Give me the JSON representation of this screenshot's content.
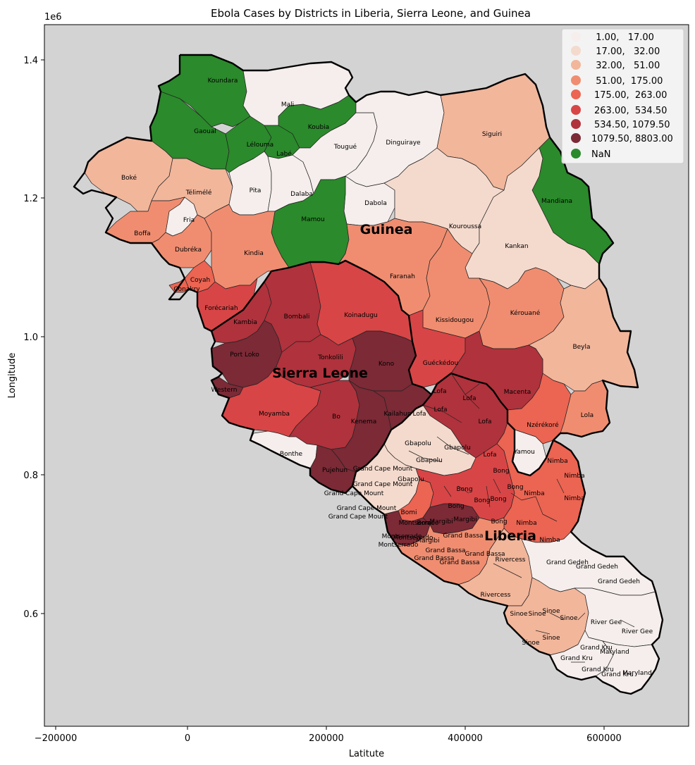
{
  "map": {
    "title": "Ebola Cases by Districts in Liberia, Sierra Leone, and Guinea",
    "xlabel": "Latitute",
    "ylabel": "Longitude",
    "y_offset_label": "1e6",
    "background_color": "#d3d3d3",
    "x_ticks": [
      "−200000",
      "0",
      "200000",
      "400000",
      "600000"
    ],
    "y_ticks": [
      "0.6",
      "0.8",
      "1.0",
      "1.2",
      "1.4"
    ],
    "countries": [
      {
        "name": "Guinea"
      },
      {
        "name": "Sierra Leone"
      },
      {
        "name": "Liberia"
      }
    ],
    "legend": {
      "placement": "top-right",
      "items": [
        {
          "label": "  1.00,   17.00",
          "color": "#f5eeec"
        },
        {
          "label": "  17.00,   32.00",
          "color": "#f4dacd"
        },
        {
          "label": "  32.00,   51.00",
          "color": "#f2b69b"
        },
        {
          "label": "  51.00,  175.00",
          "color": "#f08d70"
        },
        {
          "label": "175.00,  263.00",
          "color": "#ec6452"
        },
        {
          "label": "263.00,  534.50",
          "color": "#d84546"
        },
        {
          "label": "534.50, 1079.50",
          "color": "#b0323c"
        },
        {
          "label": "1079.50, 8803.00",
          "color": "#7b2a36"
        },
        {
          "label": "NaN",
          "color": "#2b8a2b"
        }
      ]
    },
    "district_labels": [
      "Koundara",
      "Mali",
      "Koubia",
      "Gaoual",
      "Lélouma",
      "Labé",
      "Tougué",
      "Dinguiraye",
      "Siguiri",
      "Boké",
      "Télimélé",
      "Pita",
      "Dalaba",
      "Dabola",
      "Mandiana",
      "Fria",
      "Mamou",
      "Kouroussa",
      "Boffa",
      "Dubréka",
      "Kindia",
      "Kankan",
      "Coyah",
      "Conakry",
      "Faranah",
      "Forécariah",
      "Kambia",
      "Bombali",
      "Koinadugu",
      "Kissidougou",
      "Kérouané",
      "Port Loko",
      "Tonkolili",
      "Kono",
      "Guéckédou",
      "Beyla",
      "Western",
      "Moyamba",
      "Bo",
      "Kenema",
      "Kailahun",
      "Macenta",
      "Nzérékoré",
      "Lola",
      "Bonthe",
      "Pujehun",
      "Yamou",
      "Lofa",
      "Lofa",
      "Lofa",
      "Lofa",
      "Lofa",
      "Lofa",
      "Gbapolu",
      "Gbapolu",
      "Gbapolu",
      "Gbapolu",
      "Grand Cape Mount",
      "Grand Cape Mount",
      "Grand Cape Mount",
      "Grand Cape Mount",
      "Grand Cape Mount",
      "Bong",
      "Bong",
      "Bong",
      "Bong",
      "Bong",
      "Bong",
      "Bong",
      "Nimba",
      "Nimba",
      "Nimba",
      "Nimba",
      "Nimba",
      "Nimba",
      "Bomi",
      "Bomi",
      "Margibi",
      "Margibi",
      "Margibi",
      "Montserrado",
      "Montserrado",
      "Montserrado",
      "Montserrado",
      "Grand Bassa",
      "Grand Bassa",
      "Grand Bassa",
      "Grand Bassa",
      "Grand Bassa",
      "Rivercess",
      "Rivercess",
      "Grand Gedeh",
      "Grand Gedeh",
      "Grand Gedeh",
      "Sinoe",
      "Sinoe",
      "Sinoe",
      "Sinoe",
      "Sinoe",
      "Sinoe",
      "River Gee",
      "River Gee",
      "Grand Kru",
      "Grand Kru",
      "Grand Kru",
      "Grand Kru",
      "Maryland",
      "Maryland"
    ]
  }
}
